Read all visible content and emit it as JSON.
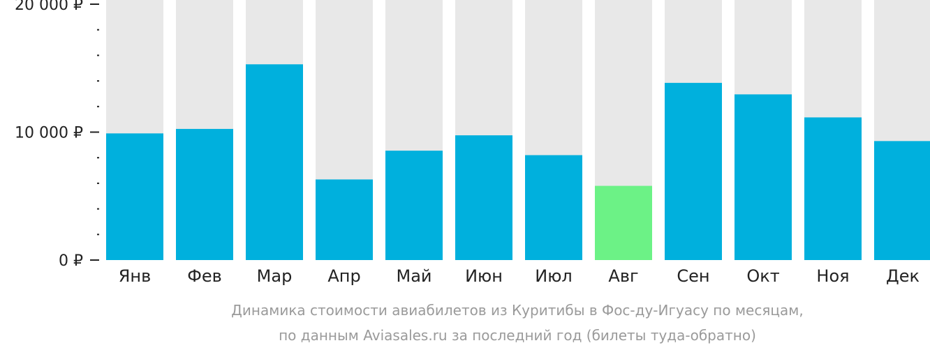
{
  "chart_data": {
    "type": "bar",
    "categories": [
      "Янв",
      "Фев",
      "Мар",
      "Апр",
      "Май",
      "Июн",
      "Июл",
      "Авг",
      "Сен",
      "Окт",
      "Ноя",
      "Дек"
    ],
    "values": [
      9900,
      10250,
      15300,
      6300,
      8550,
      9750,
      8200,
      5800,
      13850,
      12950,
      11150,
      9300
    ],
    "ylim": [
      0,
      20000
    ],
    "yticks": [
      {
        "value": 0,
        "label": "0 ₽"
      },
      {
        "value": 10000,
        "label": "10 000 ₽"
      },
      {
        "value": 20000,
        "label": "20 000 ₽"
      }
    ],
    "minor_tick_step": 2000,
    "highlight_index": 7,
    "colors": {
      "bar": "#00b0dd",
      "highlight": "#6cf286",
      "background_bar": "#e8e8e8",
      "axis": "#222222"
    },
    "caption_lines": [
      "Динамика стоимости авиабилетов из Куритибы в Фос-ду-Игуасу по месяцам,",
      "по данным Aviasales.ru за последний год (билеты туда-обратно)"
    ]
  }
}
